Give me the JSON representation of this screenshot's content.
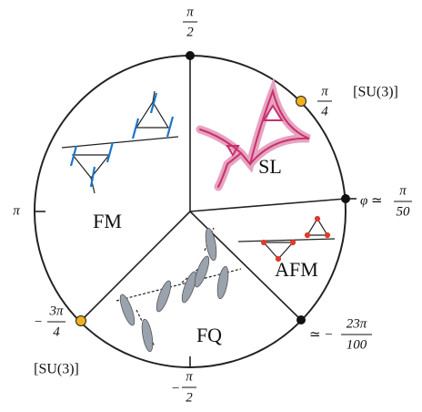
{
  "points": [
    {
      "numerator": "π",
      "denominator": "2"
    },
    {
      "numerator": "π",
      "denominator": "4",
      "note": "[SU(3)]"
    },
    {
      "prefix": "φ ≃",
      "numerator": "π",
      "denominator": "50"
    },
    {
      "prefix": "≃ −",
      "numerator": "23π",
      "denominator": "100"
    },
    {
      "prefix": "−",
      "numerator": "π",
      "denominator": "2"
    },
    {
      "prefix": "−",
      "numerator": "3π",
      "denominator": "4",
      "note": "[SU(3)]"
    }
  ],
  "left_label": "π",
  "phases": [
    "SL",
    "FM",
    "AFM",
    "FQ"
  ]
}
